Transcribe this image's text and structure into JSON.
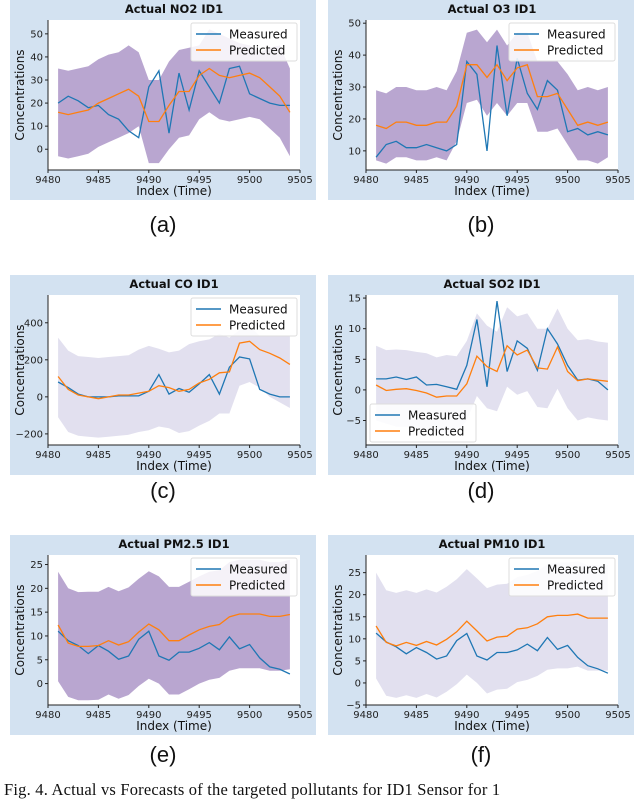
{
  "caption": "Fig. 4.  Actual vs Forecasts of the targeted pollutants for ID1 Sensor for 1",
  "colors": {
    "measured": "#1f77b4",
    "predicted": "#ff7f0e",
    "band_dark": "#b9a6d0",
    "band_light": "#e2e0ef",
    "panel_bg": "#d3e2f1"
  },
  "chart_data": [
    {
      "label": "(a)",
      "type": "line",
      "title": "Actual NO2 ID1",
      "xlabel": "Index (Time)",
      "ylabel": "Concentrations",
      "legend": "top-right",
      "band_color": "band_dark",
      "xlim": [
        9480,
        9505
      ],
      "ylim": [
        -9,
        56
      ],
      "xticks": [
        9480,
        9485,
        9490,
        9495,
        9500,
        9505
      ],
      "yticks": [
        0,
        10,
        20,
        30,
        40,
        50
      ],
      "x": [
        9481,
        9482,
        9483,
        9484,
        9485,
        9486,
        9487,
        9488,
        9489,
        9490,
        9491,
        9492,
        9493,
        9494,
        9495,
        9496,
        9497,
        9498,
        9499,
        9500,
        9501,
        9502,
        9503,
        9504
      ],
      "series": [
        {
          "name": "Measured",
          "values": [
            20,
            23,
            21,
            18,
            19,
            15,
            13,
            8,
            5,
            27,
            34,
            7,
            33,
            17,
            34,
            27,
            20,
            35,
            36,
            24,
            22,
            20,
            19,
            19
          ]
        },
        {
          "name": "Predicted",
          "values": [
            16,
            15,
            16,
            17,
            20,
            22,
            24,
            26,
            23,
            12,
            12,
            19,
            25,
            25,
            32,
            35,
            32,
            31,
            32,
            33,
            31,
            27,
            23,
            16
          ]
        }
      ],
      "band": {
        "upper": [
          35,
          34,
          35,
          36,
          39,
          41,
          42,
          45,
          42,
          30,
          30,
          38,
          43,
          44,
          45,
          52,
          50,
          48,
          46,
          45,
          42,
          44,
          45,
          35
        ],
        "lower": [
          -3,
          -4,
          -3,
          -2,
          1,
          3,
          5,
          7,
          10,
          -6,
          -6,
          0,
          5,
          6,
          13,
          16,
          13,
          12,
          13,
          14,
          13,
          9,
          5,
          -3
        ]
      }
    },
    {
      "label": "(b)",
      "type": "line",
      "title": "Actual O3 ID1",
      "xlabel": "Index (Time)",
      "ylabel": "Concentrations",
      "legend": "top-right",
      "band_color": "band_dark",
      "xlim": [
        9480,
        9505
      ],
      "ylim": [
        4,
        51
      ],
      "xticks": [
        9480,
        9485,
        9490,
        9495,
        9500,
        9505
      ],
      "yticks": [
        10,
        20,
        30,
        40,
        50
      ],
      "x": [
        9481,
        9482,
        9483,
        9484,
        9485,
        9486,
        9487,
        9488,
        9489,
        9490,
        9491,
        9492,
        9493,
        9494,
        9495,
        9496,
        9497,
        9498,
        9499,
        9500,
        9501,
        9502,
        9503,
        9504
      ],
      "series": [
        {
          "name": "Measured",
          "values": [
            8,
            12,
            13,
            11,
            11,
            12,
            11,
            10,
            12,
            38,
            34,
            10,
            43,
            21,
            39,
            28,
            23,
            32,
            29,
            16,
            17,
            15,
            16,
            15
          ]
        },
        {
          "name": "Predicted",
          "values": [
            18,
            17,
            19,
            19,
            18,
            18,
            19,
            19,
            24,
            37,
            37,
            33,
            37,
            32,
            36,
            37,
            27,
            27,
            28,
            23,
            18,
            19,
            18,
            19
          ]
        }
      ],
      "band": {
        "upper": [
          29,
          28,
          30,
          30,
          29,
          29,
          30,
          29,
          35,
          47,
          48,
          44,
          48,
          43,
          47,
          47,
          38,
          38,
          38,
          34,
          29,
          30,
          29,
          30
        ],
        "lower": [
          7,
          6,
          8,
          8,
          7,
          7,
          8,
          7,
          13,
          25,
          26,
          21,
          25,
          21,
          25,
          25,
          16,
          16,
          17,
          12,
          7,
          7,
          6,
          8
        ]
      }
    },
    {
      "label": "(c)",
      "type": "line",
      "title": "Actual CO ID1",
      "xlabel": "Index (Time)",
      "ylabel": "Concentrations",
      "legend": "top-right",
      "band_color": "band_light",
      "xlim": [
        9480,
        9505
      ],
      "ylim": [
        -260,
        550
      ],
      "xticks": [
        9480,
        9485,
        9490,
        9495,
        9500,
        9505
      ],
      "yticks": [
        -200,
        0,
        200,
        400
      ],
      "x": [
        9481,
        9482,
        9483,
        9484,
        9485,
        9486,
        9487,
        9488,
        9489,
        9490,
        9491,
        9492,
        9493,
        9494,
        9495,
        9496,
        9497,
        9498,
        9499,
        9500,
        9501,
        9502,
        9503,
        9504
      ],
      "series": [
        {
          "name": "Measured",
          "values": [
            80,
            50,
            15,
            0,
            0,
            0,
            5,
            5,
            5,
            30,
            120,
            15,
            45,
            25,
            70,
            120,
            15,
            160,
            215,
            205,
            40,
            15,
            0,
            0
          ]
        },
        {
          "name": "Predicted",
          "values": [
            110,
            40,
            10,
            0,
            -10,
            0,
            10,
            10,
            20,
            30,
            60,
            50,
            30,
            40,
            75,
            95,
            130,
            135,
            290,
            300,
            255,
            235,
            210,
            175
          ]
        }
      ],
      "band": {
        "upper": [
          320,
          250,
          220,
          215,
          210,
          215,
          220,
          225,
          255,
          275,
          260,
          240,
          250,
          285,
          300,
          310,
          340,
          320,
          360,
          380,
          330,
          330,
          330,
          330
        ],
        "lower": [
          -110,
          -190,
          -210,
          -215,
          -220,
          -215,
          -210,
          -205,
          -190,
          -180,
          -160,
          -170,
          -195,
          -185,
          -155,
          -130,
          -90,
          -90,
          60,
          80,
          50,
          0,
          -30,
          -60
        ]
      }
    },
    {
      "label": "(d)",
      "type": "line",
      "title": "Actual SO2 ID1",
      "xlabel": "Index (Time)",
      "ylabel": "Concentrations",
      "legend": "bottom-left",
      "band_color": "band_light",
      "xlim": [
        9480,
        9505
      ],
      "ylim": [
        -9,
        15.5
      ],
      "xticks": [
        9480,
        9485,
        9490,
        9495,
        9500,
        9505
      ],
      "yticks": [
        -5,
        0,
        5,
        10,
        15
      ],
      "x": [
        9481,
        9482,
        9483,
        9484,
        9485,
        9486,
        9487,
        9488,
        9489,
        9490,
        9491,
        9492,
        9493,
        9494,
        9495,
        9496,
        9497,
        9498,
        9499,
        9500,
        9501,
        9502,
        9503,
        9504
      ],
      "series": [
        {
          "name": "Measured",
          "values": [
            1.8,
            1.8,
            2.1,
            1.7,
            2.1,
            0.8,
            0.9,
            0.5,
            0.1,
            4,
            11.5,
            0.5,
            14.5,
            3,
            8,
            6.8,
            3.2,
            10,
            7.5,
            4,
            1.6,
            1.8,
            1.4,
            0
          ]
        },
        {
          "name": "Predicted",
          "values": [
            0.8,
            -0.1,
            0.1,
            0.2,
            -0.1,
            -0.5,
            -1.2,
            -1,
            -1,
            1,
            5.5,
            3.8,
            3,
            7.2,
            5.7,
            6.5,
            3.6,
            3.4,
            7,
            3,
            1.5,
            1.8,
            1.6,
            1.4
          ]
        }
      ],
      "band": {
        "upper": [
          7.2,
          6.5,
          6.6,
          6.5,
          6.2,
          6,
          5.3,
          5.7,
          5.5,
          8,
          12.5,
          10.5,
          9.5,
          13.5,
          12,
          12.5,
          10,
          10,
          13.3,
          10,
          8.1,
          8.3,
          7.9,
          7.7
        ],
        "lower": [
          -5,
          -5.5,
          -6,
          -6,
          -6.5,
          -6.5,
          -7,
          -7,
          -7,
          -5,
          -1,
          -3,
          -3.5,
          0.5,
          -0.8,
          -0.2,
          -2.8,
          -3,
          0.2,
          -3,
          -5,
          -4.5,
          -4.8,
          -5
        ]
      }
    },
    {
      "label": "(e)",
      "type": "line",
      "title": "Actual PM2.5 ID1",
      "xlabel": "Index (Time)",
      "ylabel": "Concentrations",
      "legend": "top-right",
      "band_color": "band_dark",
      "xlim": [
        9480,
        9505
      ],
      "ylim": [
        -4.5,
        27
      ],
      "xticks": [
        9480,
        9485,
        9490,
        9495,
        9500,
        9505
      ],
      "yticks": [
        0,
        5,
        10,
        15,
        20,
        25
      ],
      "x": [
        9481,
        9482,
        9483,
        9484,
        9485,
        9486,
        9487,
        9488,
        9489,
        9490,
        9491,
        9492,
        9493,
        9494,
        9495,
        9496,
        9497,
        9498,
        9499,
        9500,
        9501,
        9502,
        9503,
        9504
      ],
      "series": [
        {
          "name": "Measured",
          "values": [
            11,
            9,
            8,
            6.3,
            8,
            6.8,
            5.1,
            5.8,
            9.3,
            11,
            5.8,
            4.9,
            6.6,
            6.6,
            7.4,
            8.6,
            7.1,
            9.8,
            7.3,
            8.2,
            5.4,
            3.5,
            3,
            2
          ]
        },
        {
          "name": "Predicted",
          "values": [
            12.3,
            8.5,
            7.8,
            7.8,
            8,
            9,
            8.1,
            8.8,
            10.8,
            12.5,
            11.3,
            9,
            9,
            10.2,
            11.3,
            12,
            12.4,
            14,
            14.6,
            14.6,
            14.6,
            14.1,
            14.1,
            14.5
          ]
        }
      ],
      "band": {
        "upper": [
          23.5,
          20,
          19.2,
          19.3,
          19.3,
          20.3,
          19.4,
          20.2,
          22,
          23.6,
          22.5,
          20.3,
          20.3,
          21.4,
          22.5,
          23.5,
          23.8,
          25.5,
          26,
          26,
          26,
          25.5,
          25.5,
          26
        ],
        "lower": [
          0.5,
          -2.8,
          -3.5,
          -3.5,
          -3.4,
          -2.3,
          -3.2,
          -2.4,
          -0.5,
          1,
          0,
          -2.3,
          -2.3,
          -1.2,
          0,
          0.8,
          1.2,
          2.7,
          3.2,
          3.2,
          3.2,
          2.7,
          2.7,
          3
        ]
      }
    },
    {
      "label": "(f)",
      "type": "line",
      "title": "Actual PM10 ID1",
      "xlabel": "Index (Time)",
      "ylabel": "Concentrations",
      "legend": "top-right",
      "band_color": "band_light",
      "xlim": [
        9480,
        9505
      ],
      "ylim": [
        -5,
        29
      ],
      "xticks": [
        9480,
        9485,
        9490,
        9495,
        9500,
        9505
      ],
      "yticks": [
        -5,
        0,
        5,
        10,
        15,
        20,
        25
      ],
      "x": [
        9481,
        9482,
        9483,
        9484,
        9485,
        9486,
        9487,
        9488,
        9489,
        9490,
        9491,
        9492,
        9493,
        9494,
        9495,
        9496,
        9497,
        9498,
        9499,
        9500,
        9501,
        9502,
        9503,
        9504
      ],
      "series": [
        {
          "name": "Measured",
          "values": [
            11.3,
            9.3,
            8.2,
            6.6,
            8,
            6.9,
            5.4,
            6.1,
            9.6,
            11.2,
            6.1,
            5.2,
            6.9,
            6.9,
            7.5,
            8.8,
            7.3,
            10.3,
            7.6,
            8.5,
            5.8,
            3.9,
            3.2,
            2.2
          ]
        },
        {
          "name": "Predicted",
          "values": [
            12.9,
            9.2,
            8.4,
            9.2,
            8.5,
            9.4,
            8.6,
            9.9,
            11.6,
            14,
            11.8,
            9.5,
            10.4,
            10.6,
            12.2,
            12.5,
            13.4,
            15,
            15.3,
            15.3,
            15.6,
            14.7,
            14.7,
            14.7
          ]
        }
      ],
      "band": {
        "upper": [
          25,
          21,
          20.4,
          21,
          20.4,
          21.2,
          20.5,
          21.8,
          23.5,
          25.8,
          23.7,
          21.5,
          22.3,
          22.5,
          24,
          24.5,
          25.4,
          26.9,
          27.3,
          27.3,
          27.6,
          26.7,
          26.7,
          26.7
        ],
        "lower": [
          1,
          -2.9,
          -3.4,
          -2.8,
          -3.4,
          -2.5,
          -3.3,
          -2,
          -0.3,
          1.9,
          0,
          -2.4,
          -1.5,
          -1.3,
          0.2,
          0.7,
          1.6,
          3,
          3.3,
          3.3,
          3.7,
          2.8,
          2.8,
          2.8
        ]
      }
    }
  ]
}
